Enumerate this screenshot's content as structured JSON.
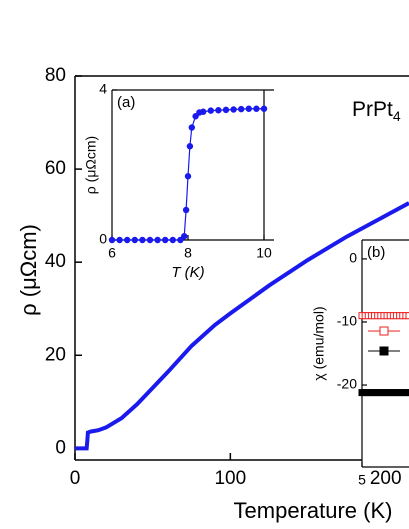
{
  "chart_data": [
    {
      "type": "line",
      "color": "#1a1aee",
      "x": [
        0,
        5,
        7.5,
        7.9,
        8.3,
        10,
        15,
        20,
        30,
        40,
        50,
        60,
        75,
        90,
        100,
        125,
        150,
        175,
        200,
        215
      ],
      "values": [
        0,
        0,
        0,
        1.5,
        3.4,
        3.6,
        3.9,
        4.5,
        6.5,
        9.5,
        13,
        16.5,
        22,
        26.5,
        29,
        35,
        40.5,
        45.5,
        50,
        52.7
      ],
      "xlim": [
        0,
        215
      ],
      "ylim": [
        -2.5,
        80
      ],
      "xticks": [
        0,
        100,
        200
      ],
      "yticks": [
        0,
        20,
        40,
        60,
        80
      ],
      "xlabel": "Temperature (K)",
      "ylabel": "ρ (μΩcm)",
      "annotation": "PrPt",
      "annotation_sub": "4"
    },
    {
      "type": "line",
      "markers": true,
      "color": "#1a1aee",
      "label": "(a)",
      "x": [
        6.0,
        6.2,
        6.4,
        6.6,
        6.8,
        7.0,
        7.2,
        7.4,
        7.6,
        7.8,
        7.9,
        7.95,
        8.0,
        8.05,
        8.1,
        8.2,
        8.3,
        8.4,
        8.6,
        8.8,
        9.0,
        9.2,
        9.4,
        9.6,
        9.8,
        10.0
      ],
      "values": [
        0,
        0,
        0,
        0,
        0,
        0,
        0,
        0,
        0,
        0,
        0.1,
        0.8,
        1.7,
        2.5,
        3.0,
        3.3,
        3.4,
        3.42,
        3.45,
        3.46,
        3.47,
        3.48,
        3.49,
        3.5,
        3.5,
        3.5
      ],
      "xlim": [
        6,
        10
      ],
      "ylim": [
        0,
        4
      ],
      "xticks": [
        6,
        8,
        10
      ],
      "yticks": [
        0,
        4
      ],
      "xlabel": "T (K)",
      "ylabel": "ρ (μΩcm)"
    },
    {
      "type": "scatter",
      "label": "(b)",
      "x": [
        5.0,
        5.1,
        5.2,
        5.3,
        5.4,
        5.5,
        5.6,
        5.7,
        5.8,
        5.9,
        6.0,
        6.1,
        6.2,
        6.3,
        6.4,
        6.5
      ],
      "series": [
        {
          "color": "#ee2222",
          "values": [
            -9,
            -9,
            -9,
            -9,
            -9,
            -9,
            -9,
            -9,
            -9,
            -9,
            -9,
            -9,
            -9,
            -9,
            -9,
            -9
          ]
        },
        {
          "color": "#000000",
          "values": [
            -21.2,
            -21.2,
            -21.2,
            -21.2,
            -21.2,
            -21.2,
            -21.2,
            -21.2,
            -21.2,
            -21.2,
            -21.2,
            -21.2,
            -21.2,
            -21.2,
            -21.2,
            -21.2
          ]
        }
      ],
      "xlim": [
        5,
        6.5
      ],
      "ylim": [
        -33,
        3
      ],
      "xticks": [
        5
      ],
      "yticks": [
        0,
        -10,
        -20
      ],
      "ylabel": "χ (emu/mol)"
    }
  ]
}
